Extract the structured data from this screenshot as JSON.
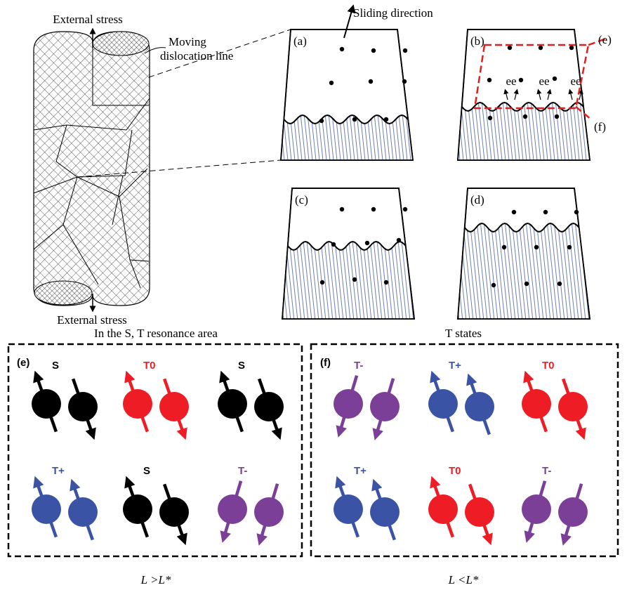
{
  "cylinder": {
    "top_label": "External stress",
    "bottom_label": "External stress",
    "dislocation_label": [
      "Moving",
      "dislocation line"
    ]
  },
  "sliding_label": "Sliding direction",
  "panels": [
    "(a)",
    "(b)",
    "(c)",
    "(d)"
  ],
  "callouts": [
    "(e)",
    "(f)"
  ],
  "electrons": [
    "ee",
    "ee",
    "ee"
  ],
  "boxes": [
    {
      "title": "In the S, T resonance area",
      "label": "(e)",
      "condition": "L >L*",
      "pairs": [
        {
          "state": "S",
          "color": "#000000"
        },
        {
          "state": "T0",
          "color": "#ee1c24"
        },
        {
          "state": "S",
          "color": "#000000"
        },
        {
          "state": "T+",
          "color": "#3a53a4"
        },
        {
          "state": "S",
          "color": "#000000"
        },
        {
          "state": "T-",
          "color": "#7b3f98"
        }
      ]
    },
    {
      "title": "T states",
      "label": "(f)",
      "condition": "L <L*",
      "pairs": [
        {
          "state": "T-",
          "color": "#7b3f98"
        },
        {
          "state": "T+",
          "color": "#3a53a4"
        },
        {
          "state": "T0",
          "color": "#ee1c24"
        },
        {
          "state": "T+",
          "color": "#3a53a4"
        },
        {
          "state": "T0",
          "color": "#ee1c24"
        },
        {
          "state": "T-",
          "color": "#7b3f98"
        }
      ]
    }
  ]
}
